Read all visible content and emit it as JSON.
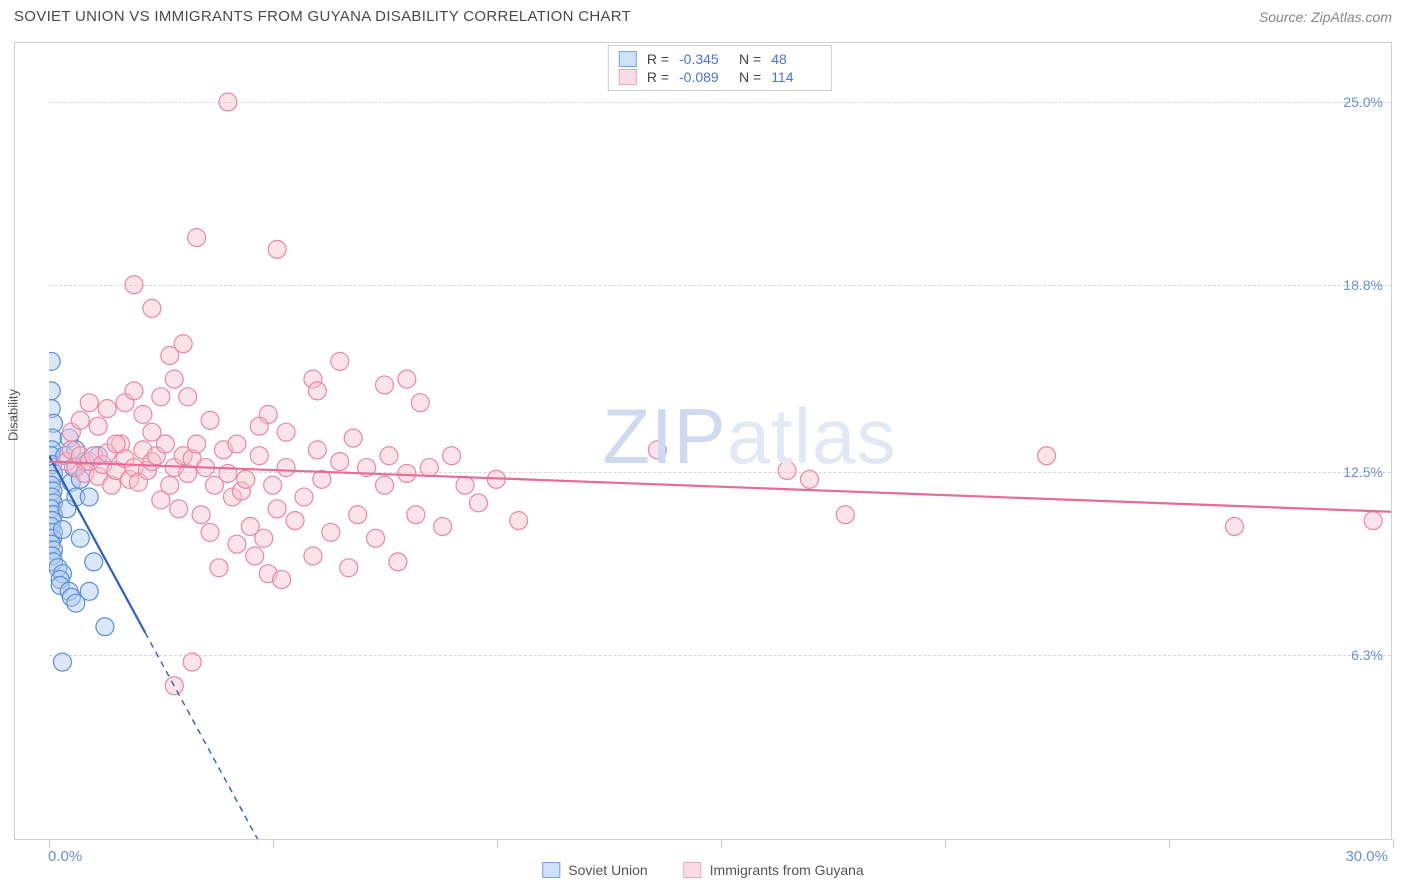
{
  "title": "SOVIET UNION VS IMMIGRANTS FROM GUYANA DISABILITY CORRELATION CHART",
  "source": "Source: ZipAtlas.com",
  "ylabel": "Disability",
  "watermark": "ZIPatlas",
  "chart": {
    "type": "scatter",
    "background_color": "#ffffff",
    "grid_color": "#d8d8d8",
    "border_color": "#d0d0d0",
    "xlim": [
      0,
      30
    ],
    "ylim": [
      0,
      27
    ],
    "x_ticks": [
      0,
      5,
      10,
      15,
      20,
      25,
      30
    ],
    "y_ticks": [
      6.3,
      12.5,
      18.8,
      25.0
    ],
    "y_tick_labels": [
      "6.3%",
      "12.5%",
      "18.8%",
      "25.0%"
    ],
    "x_corner_low": "0.0%",
    "x_corner_high": "30.0%",
    "tick_label_color": "#6b8fd6",
    "tick_label_fontsize": 14,
    "marker_radius": 9,
    "marker_opacity": 0.45,
    "trend_line_width": 2.2,
    "series": [
      {
        "name": "Soviet Union",
        "key": "soviet",
        "color_fill": "#aecaf2",
        "color_stroke": "#5b8ed8",
        "swatch_fill": "#cfe0f7",
        "swatch_border": "#7ba3e0",
        "trend_color": "#2d5fc2",
        "r_value": "-0.345",
        "n_value": "48",
        "trend": {
          "x1": 0.0,
          "y1": 13.0,
          "x2": 2.15,
          "y2": 7.0
        },
        "trend_dash": {
          "x1": 2.15,
          "y1": 7.0,
          "x2": 5.2,
          "y2": -1.5
        },
        "points": [
          [
            0.05,
            16.2
          ],
          [
            0.05,
            15.2
          ],
          [
            0.05,
            14.6
          ],
          [
            0.1,
            14.1
          ],
          [
            0.08,
            13.6
          ],
          [
            0.06,
            13.2
          ],
          [
            0.05,
            13.0
          ],
          [
            0.08,
            12.7
          ],
          [
            0.1,
            12.4
          ],
          [
            0.07,
            12.2
          ],
          [
            0.05,
            12.0
          ],
          [
            0.09,
            11.8
          ],
          [
            0.06,
            11.6
          ],
          [
            0.1,
            11.4
          ],
          [
            0.05,
            11.2
          ],
          [
            0.1,
            11.0
          ],
          [
            0.07,
            10.8
          ],
          [
            0.05,
            10.6
          ],
          [
            0.1,
            10.4
          ],
          [
            0.08,
            10.2
          ],
          [
            0.05,
            10.0
          ],
          [
            0.1,
            9.8
          ],
          [
            0.07,
            9.6
          ],
          [
            0.1,
            9.4
          ],
          [
            0.2,
            9.2
          ],
          [
            0.3,
            9.0
          ],
          [
            0.25,
            8.8
          ],
          [
            0.25,
            8.6
          ],
          [
            0.45,
            8.4
          ],
          [
            0.5,
            8.2
          ],
          [
            0.6,
            8.0
          ],
          [
            0.3,
            10.5
          ],
          [
            0.4,
            11.2
          ],
          [
            0.5,
            12.1
          ],
          [
            0.35,
            13.0
          ],
          [
            0.45,
            13.6
          ],
          [
            0.55,
            12.6
          ],
          [
            0.6,
            11.6
          ],
          [
            0.7,
            10.2
          ],
          [
            0.8,
            12.8
          ],
          [
            0.9,
            11.6
          ],
          [
            1.0,
            9.4
          ],
          [
            1.1,
            13.0
          ],
          [
            1.25,
            7.2
          ],
          [
            0.3,
            6.0
          ],
          [
            0.6,
            13.2
          ],
          [
            0.7,
            12.2
          ],
          [
            0.9,
            8.4
          ]
        ]
      },
      {
        "name": "Immigrants from Guyana",
        "key": "guyana",
        "color_fill": "#f6c2d1",
        "color_stroke": "#e987a6",
        "swatch_fill": "#fadce5",
        "swatch_border": "#f0a5bd",
        "trend_color": "#e76a97",
        "r_value": "-0.089",
        "n_value": "114",
        "trend": {
          "x1": 0.0,
          "y1": 12.8,
          "x2": 30.0,
          "y2": 11.1
        },
        "points": [
          [
            4.0,
            25.0
          ],
          [
            3.3,
            20.4
          ],
          [
            5.1,
            20.0
          ],
          [
            1.9,
            18.8
          ],
          [
            2.3,
            18.0
          ],
          [
            2.7,
            16.4
          ],
          [
            2.8,
            15.6
          ],
          [
            3.0,
            16.8
          ],
          [
            3.1,
            15.0
          ],
          [
            4.9,
            14.4
          ],
          [
            5.9,
            15.6
          ],
          [
            6.0,
            15.2
          ],
          [
            6.5,
            16.2
          ],
          [
            7.5,
            15.4
          ],
          [
            8.0,
            15.6
          ],
          [
            8.3,
            14.8
          ],
          [
            13.6,
            13.2
          ],
          [
            22.3,
            13.0
          ],
          [
            26.5,
            10.6
          ],
          [
            29.6,
            10.8
          ],
          [
            17.8,
            11.0
          ],
          [
            17.0,
            12.2
          ],
          [
            16.5,
            12.5
          ],
          [
            0.4,
            12.8
          ],
          [
            0.5,
            13.2
          ],
          [
            0.6,
            12.6
          ],
          [
            0.7,
            13.0
          ],
          [
            0.8,
            12.4
          ],
          [
            0.9,
            12.8
          ],
          [
            1.0,
            13.0
          ],
          [
            1.1,
            12.3
          ],
          [
            1.2,
            12.7
          ],
          [
            1.3,
            13.1
          ],
          [
            1.4,
            12.0
          ],
          [
            1.5,
            12.5
          ],
          [
            1.6,
            13.4
          ],
          [
            1.7,
            12.9
          ],
          [
            1.8,
            12.2
          ],
          [
            1.9,
            12.6
          ],
          [
            2.0,
            12.1
          ],
          [
            2.1,
            13.2
          ],
          [
            2.2,
            12.5
          ],
          [
            2.3,
            12.8
          ],
          [
            2.4,
            13.0
          ],
          [
            2.5,
            11.5
          ],
          [
            2.6,
            13.4
          ],
          [
            2.7,
            12.0
          ],
          [
            2.8,
            12.6
          ],
          [
            2.9,
            11.2
          ],
          [
            3.0,
            13.0
          ],
          [
            3.1,
            12.4
          ],
          [
            3.2,
            12.9
          ],
          [
            3.3,
            13.4
          ],
          [
            3.4,
            11.0
          ],
          [
            3.5,
            12.6
          ],
          [
            3.6,
            10.4
          ],
          [
            3.7,
            12.0
          ],
          [
            3.8,
            9.2
          ],
          [
            3.9,
            13.2
          ],
          [
            4.0,
            12.4
          ],
          [
            4.1,
            11.6
          ],
          [
            4.2,
            10.0
          ],
          [
            4.3,
            11.8
          ],
          [
            4.4,
            12.2
          ],
          [
            4.5,
            10.6
          ],
          [
            4.6,
            9.6
          ],
          [
            4.7,
            13.0
          ],
          [
            4.8,
            10.2
          ],
          [
            4.9,
            9.0
          ],
          [
            5.0,
            12.0
          ],
          [
            5.1,
            11.2
          ],
          [
            5.2,
            8.8
          ],
          [
            5.3,
            12.6
          ],
          [
            5.5,
            10.8
          ],
          [
            5.7,
            11.6
          ],
          [
            5.9,
            9.6
          ],
          [
            6.1,
            12.2
          ],
          [
            6.3,
            10.4
          ],
          [
            6.5,
            12.8
          ],
          [
            6.7,
            9.2
          ],
          [
            6.9,
            11.0
          ],
          [
            7.1,
            12.6
          ],
          [
            7.3,
            10.2
          ],
          [
            7.5,
            12.0
          ],
          [
            7.8,
            9.4
          ],
          [
            8.0,
            12.4
          ],
          [
            8.2,
            11.0
          ],
          [
            8.5,
            12.6
          ],
          [
            8.8,
            10.6
          ],
          [
            9.0,
            13.0
          ],
          [
            9.3,
            12.0
          ],
          [
            9.6,
            11.4
          ],
          [
            10.0,
            12.2
          ],
          [
            10.5,
            10.8
          ],
          [
            0.5,
            13.8
          ],
          [
            0.7,
            14.2
          ],
          [
            0.9,
            14.8
          ],
          [
            1.1,
            14.0
          ],
          [
            1.3,
            14.6
          ],
          [
            1.5,
            13.4
          ],
          [
            1.7,
            14.8
          ],
          [
            1.9,
            15.2
          ],
          [
            2.1,
            14.4
          ],
          [
            2.3,
            13.8
          ],
          [
            2.5,
            15.0
          ],
          [
            3.2,
            6.0
          ],
          [
            2.8,
            5.2
          ],
          [
            3.6,
            14.2
          ],
          [
            4.2,
            13.4
          ],
          [
            4.7,
            14.0
          ],
          [
            5.3,
            13.8
          ],
          [
            6.0,
            13.2
          ],
          [
            6.8,
            13.6
          ],
          [
            7.6,
            13.0
          ]
        ]
      }
    ]
  },
  "legend_bottom": [
    {
      "key": "soviet",
      "label": "Soviet Union"
    },
    {
      "key": "guyana",
      "label": "Immigrants from Guyana"
    }
  ]
}
